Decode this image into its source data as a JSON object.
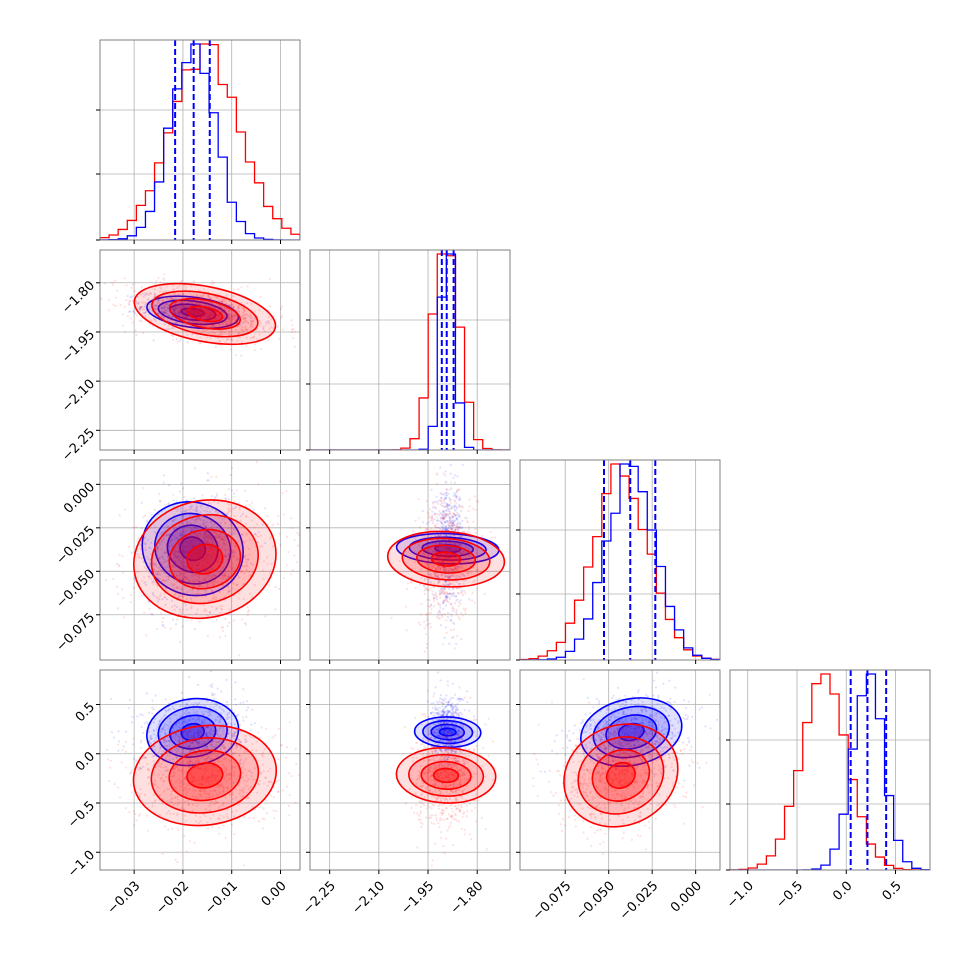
{
  "figure": {
    "kind": "corner-plot",
    "params": [
      {
        "range": [
          -0.037,
          0.004
        ],
        "ticks": [
          -0.03,
          -0.02,
          -0.01,
          0.0
        ],
        "tick_labels": [
          "−0.03",
          "−0.02",
          "−0.01",
          "0.00"
        ]
      },
      {
        "range": [
          -2.31,
          -1.7
        ],
        "ticks": [
          -2.25,
          -2.1,
          -1.95,
          -1.8
        ],
        "tick_labels": [
          "−2.25",
          "−2.10",
          "−1.95",
          "−1.80"
        ]
      },
      {
        "range": [
          -0.101,
          0.014
        ],
        "ticks": [
          -0.075,
          -0.05,
          -0.025,
          0.0
        ],
        "tick_labels": [
          "−0.075",
          "−0.050",
          "−0.025",
          "0.000"
        ]
      },
      {
        "range": [
          -1.18,
          0.85
        ],
        "ticks": [
          -1.0,
          -0.5,
          0.0,
          0.5
        ],
        "tick_labels": [
          "−1.0",
          "−0.5",
          "0.0",
          "0.5"
        ]
      }
    ],
    "colors": {
      "blue": "#0000ff",
      "red": "#ff0000",
      "grid": "#b0b0b0",
      "frame": "#808080"
    }
  },
  "chart_data": {
    "type": "corner",
    "series": [
      {
        "name": "",
        "color": "#0000ff",
        "mean": [
          -0.018,
          -1.89,
          -0.037,
          0.22
        ],
        "std": [
          0.0045,
          0.022,
          0.014,
          0.16
        ],
        "quantiles": [
          [
            -0.0216,
            -0.0178,
            -0.0145
          ],
          [
            -1.908,
            -1.893,
            -1.872
          ],
          [
            -0.0527,
            -0.0376,
            -0.0232
          ],
          [
            0.045,
            0.215,
            0.405
          ]
        ]
      },
      {
        "name": "",
        "color": "#ff0000",
        "mean": [
          -0.0155,
          -1.895,
          -0.043,
          -0.22
        ],
        "std": [
          0.007,
          0.04,
          0.016,
          0.24
        ],
        "quantiles": []
      }
    ],
    "corr": {
      "1-0": [
        -0.35,
        -0.45
      ],
      "2-0": [
        0.1,
        0.1
      ],
      "2-1": [
        0.1,
        0.1
      ],
      "3-0": [
        0.1,
        0.1
      ],
      "3-1": [
        0.05,
        0.05
      ],
      "3-2": [
        0.2,
        0.2
      ]
    },
    "hist_max_frac": [
      0.1,
      0.28,
      0.12,
      0.14
    ]
  }
}
